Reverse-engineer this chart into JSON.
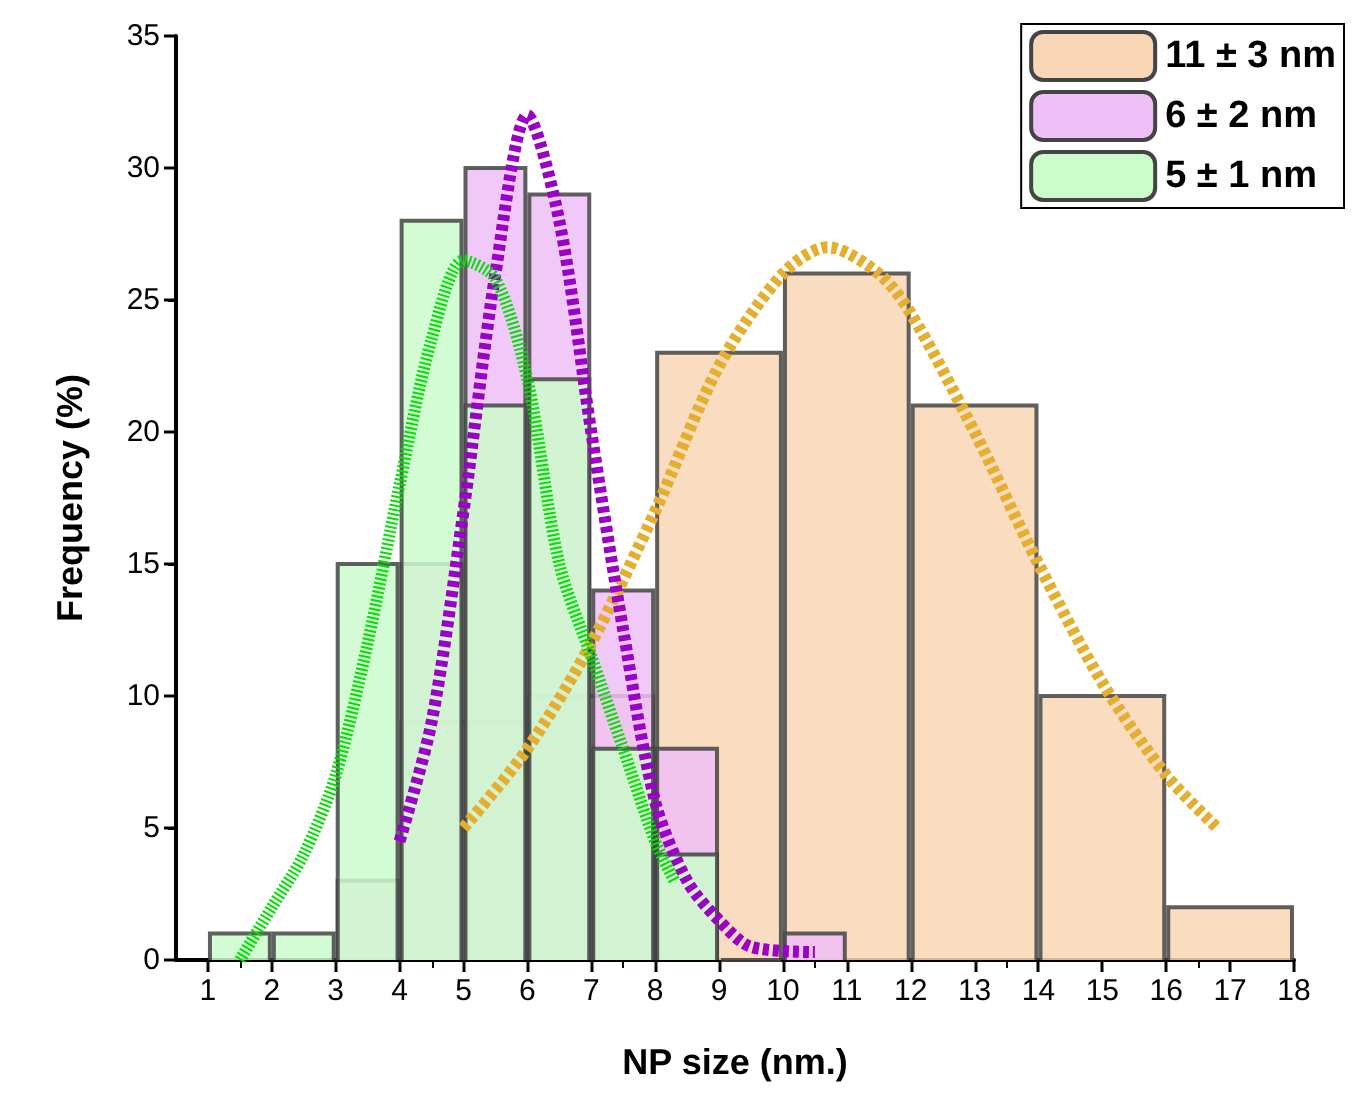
{
  "chart_data": {
    "type": "histogram",
    "xlabel": "NP size (nm.)",
    "ylabel": "Frequency (%)",
    "xlim": [
      0.5,
      18
    ],
    "xticks": [
      1,
      2,
      3,
      4,
      5,
      6,
      7,
      8,
      9,
      10,
      11,
      12,
      13,
      14,
      15,
      16,
      17,
      18
    ],
    "ylim": [
      0,
      35
    ],
    "yticks": [
      0,
      5,
      10,
      15,
      20,
      25,
      30,
      35
    ],
    "grid": false,
    "legend": "top right",
    "series": [
      {
        "name": "11 ± 3 nm",
        "color": "#f9d6b5",
        "bins": [
          4,
          6,
          8,
          10,
          12,
          14,
          16,
          18
        ],
        "values": [
          9,
          10,
          23,
          26,
          21,
          10,
          2
        ]
      },
      {
        "name": "6 ± 2 nm",
        "color": "#efc0f7",
        "bins": [
          3,
          4,
          5,
          6,
          7,
          8,
          9,
          10,
          11
        ],
        "values": [
          3,
          15,
          30,
          29,
          14,
          8,
          0,
          1
        ]
      },
      {
        "name": "5 ± 1 nm",
        "color": "#ccfccc",
        "bins": [
          1,
          2,
          3,
          4,
          5,
          6,
          7,
          8,
          9
        ],
        "values": [
          1,
          1,
          15,
          28,
          21,
          22,
          8,
          4
        ]
      },
      {
        "type": "line",
        "color": "#e6ae2e",
        "line_style": "dashed",
        "x": [
          5,
          6,
          7,
          8,
          9,
          10,
          10.7,
          11.5,
          12,
          13,
          14,
          15,
          16,
          16.8
        ],
        "values": [
          5,
          8,
          12,
          17,
          22.5,
          26,
          27,
          26,
          24.5,
          20,
          15,
          10.5,
          7,
          5
        ]
      },
      {
        "type": "line",
        "color": "#9b00c6",
        "line_style": "dashed",
        "x": [
          4,
          4.5,
          5,
          5.5,
          6,
          6.5,
          7,
          7.5,
          8,
          8.5,
          9,
          9.5,
          10.5
        ],
        "values": [
          4.5,
          9,
          17,
          26,
          32,
          28,
          20,
          12.5,
          6,
          3,
          1.5,
          0.5,
          0.3
        ]
      },
      {
        "type": "line",
        "color": "#00e000",
        "line_style": "dotted",
        "x": [
          1.5,
          2,
          2.5,
          3,
          3.5,
          4,
          4.5,
          5,
          5.5,
          6,
          6.5,
          7,
          7.5,
          8,
          8.3
        ],
        "values": [
          0,
          2,
          4,
          7,
          12,
          18,
          23.5,
          26.5,
          25.8,
          22,
          15,
          11.5,
          8,
          4.5,
          3
        ]
      }
    ]
  }
}
